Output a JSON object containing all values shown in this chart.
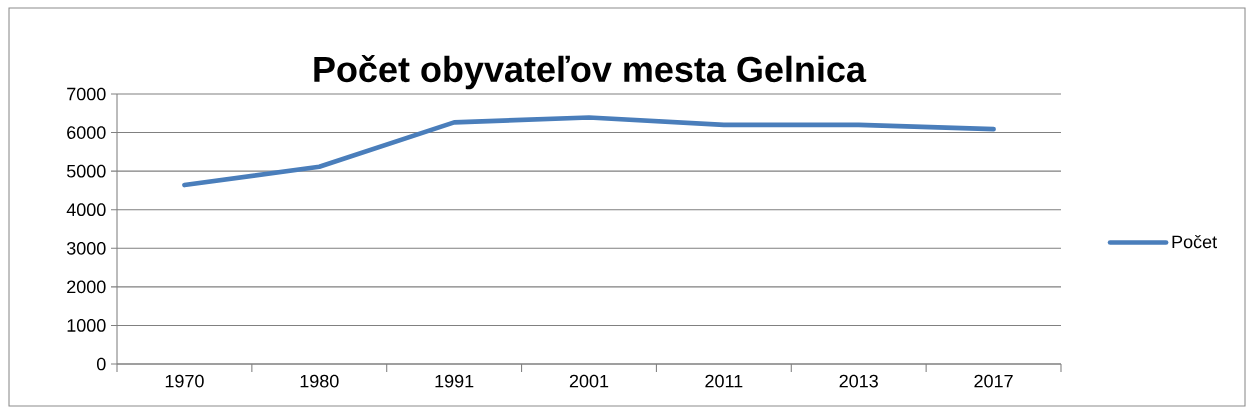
{
  "chart_data": {
    "type": "line",
    "title": "Počet obyvateľov mesta Gelnica",
    "categories": [
      "1970",
      "1980",
      "1991",
      "2001",
      "2011",
      "2013",
      "2017"
    ],
    "series": [
      {
        "name": "Počet",
        "color": "#4a7ebb",
        "values": [
          4640,
          5115,
          6265,
          6390,
          6200,
          6200,
          6090
        ]
      }
    ],
    "ylim": [
      0,
      7000
    ],
    "yticks": [
      0,
      1000,
      2000,
      3000,
      4000,
      5000,
      6000,
      7000
    ],
    "grid": "y",
    "legend": "right",
    "marker": "none"
  }
}
